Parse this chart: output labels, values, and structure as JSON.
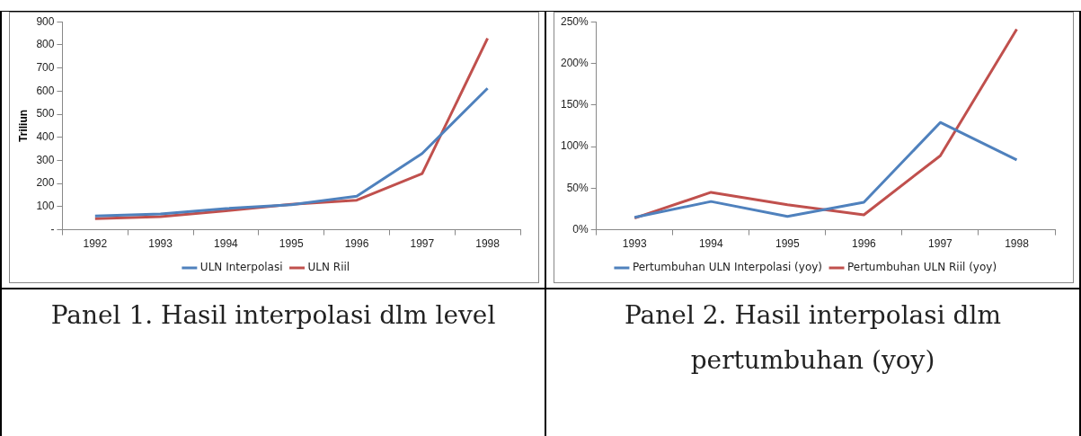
{
  "chart_data": [
    {
      "type": "line",
      "ylabel": "Triliun",
      "categories": [
        "1992",
        "1993",
        "1994",
        "1995",
        "1996",
        "1997",
        "1998"
      ],
      "series": [
        {
          "name": "ULN Interpolasi",
          "color": "#4f81bd",
          "values": [
            60,
            68,
            92,
            108,
            145,
            330,
            612
          ]
        },
        {
          "name": "ULN Riil",
          "color": "#c0504d",
          "values": [
            48,
            57,
            82,
            110,
            128,
            243,
            828
          ]
        }
      ],
      "ylim": [
        0,
        900
      ],
      "yticks": [
        {
          "value": 0,
          "label": "-"
        },
        100,
        200,
        300,
        400,
        500,
        600,
        700,
        800,
        900
      ],
      "grid": false,
      "legend": "bottom",
      "marker": "none",
      "line_style": "solid",
      "annotations": [
        "Panel 1. Hasil interpolasi dlm level"
      ]
    },
    {
      "type": "line",
      "categories": [
        "1993",
        "1994",
        "1995",
        "1996",
        "1997",
        "1998"
      ],
      "series": [
        {
          "name": "Pertumbuhan ULN Interpolasi (yoy)",
          "color": "#4f81bd",
          "values": [
            15,
            34,
            16,
            33,
            129,
            84
          ]
        },
        {
          "name": "Pertumbuhan ULN Riil (yoy)",
          "color": "#c0504d",
          "values": [
            14,
            45,
            30,
            18,
            89,
            241
          ]
        }
      ],
      "ylim": [
        0,
        250
      ],
      "yticks": [
        {
          "value": 0,
          "label": "0%"
        },
        {
          "value": 50,
          "label": "50%"
        },
        {
          "value": 100,
          "label": "100%"
        },
        {
          "value": 150,
          "label": "150%"
        },
        {
          "value": 200,
          "label": "200%"
        },
        {
          "value": 250,
          "label": "250%"
        }
      ],
      "grid": false,
      "legend": "bottom",
      "marker": "none",
      "line_style": "solid",
      "annotations": [
        "Panel 2. Hasil interpolasi dlm pertumbuhan (yoy)"
      ]
    }
  ]
}
